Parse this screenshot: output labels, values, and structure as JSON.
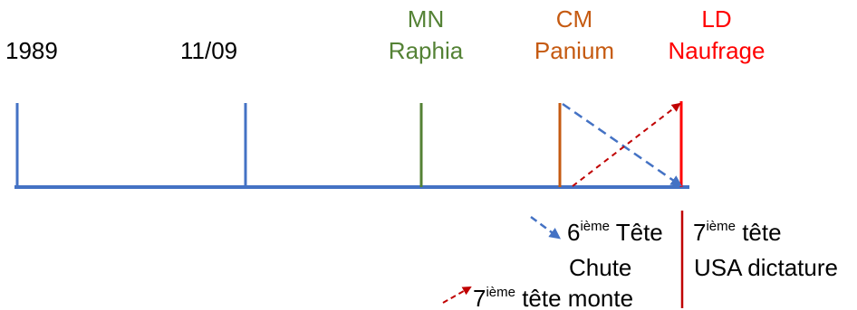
{
  "colors": {
    "axis": "#4472C4",
    "green": "#548235",
    "orange": "#C55A11",
    "red": "#FF0000",
    "dark_red": "#C00000",
    "black": "#000000"
  },
  "timeline": {
    "label_1989": "1989",
    "label_1109": "11/09",
    "mn": {
      "code": "MN",
      "name": "Raphia"
    },
    "cm": {
      "code": "CM",
      "name": "Panium"
    },
    "ld": {
      "code": "LD",
      "name": "Naufrage"
    }
  },
  "legend": {
    "blue_arrow": {
      "num": "6",
      "sup": "ième",
      "rest": " Tête",
      "line2": "Chute"
    },
    "right_col": {
      "num": "7",
      "sup": "ième",
      "rest": " tête",
      "line2": "USA dictature"
    },
    "red_arrow": {
      "num": "7",
      "sup": "ième",
      "rest": " tête monte"
    }
  }
}
